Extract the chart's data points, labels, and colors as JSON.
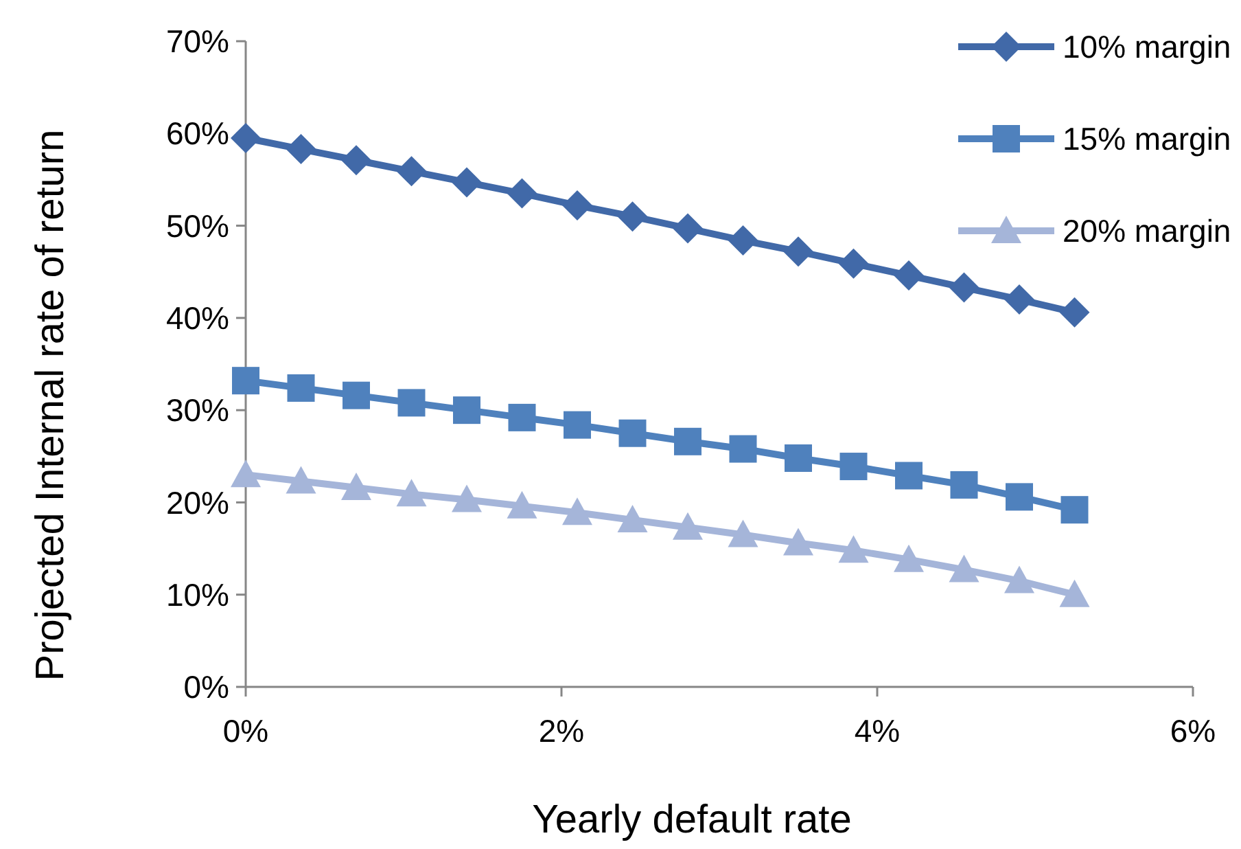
{
  "chart_data": {
    "type": "line",
    "xlabel": "Yearly default rate",
    "ylabel": "Projected Internal rate of return",
    "x": [
      0,
      0.35,
      0.7,
      1.05,
      1.4,
      1.75,
      2.1,
      2.45,
      2.8,
      3.15,
      3.5,
      3.85,
      4.2,
      4.55,
      4.9,
      5.25
    ],
    "series": [
      {
        "name": "10% margin",
        "color": "#4169a8",
        "marker": "diamond",
        "values": [
          59.5,
          58.3,
          57.1,
          55.9,
          54.7,
          53.5,
          52.2,
          51.0,
          49.7,
          48.4,
          47.2,
          45.9,
          44.6,
          43.3,
          42.0,
          40.6
        ]
      },
      {
        "name": "15% margin",
        "color": "#4f81bd",
        "marker": "square",
        "values": [
          33.2,
          32.4,
          31.6,
          30.8,
          30.0,
          29.2,
          28.4,
          27.5,
          26.6,
          25.8,
          24.8,
          23.9,
          22.9,
          21.9,
          20.6,
          19.2
        ]
      },
      {
        "name": "20% margin",
        "color": "#a5b5d9",
        "marker": "triangle",
        "values": [
          23.0,
          22.3,
          21.6,
          20.9,
          20.3,
          19.6,
          18.9,
          18.1,
          17.3,
          16.5,
          15.6,
          14.8,
          13.8,
          12.7,
          11.5,
          10.0
        ]
      }
    ],
    "xlim": [
      0,
      6
    ],
    "xticks": [
      {
        "value": 0,
        "label": "0%"
      },
      {
        "value": 2,
        "label": "2%"
      },
      {
        "value": 4,
        "label": "4%"
      },
      {
        "value": 6,
        "label": "6%"
      }
    ],
    "ylim": [
      0,
      70
    ],
    "yticks": [
      {
        "value": 0,
        "label": "0%"
      },
      {
        "value": 10,
        "label": "10%"
      },
      {
        "value": 20,
        "label": "20%"
      },
      {
        "value": 30,
        "label": "30%"
      },
      {
        "value": 40,
        "label": "40%"
      },
      {
        "value": 50,
        "label": "50%"
      },
      {
        "value": 60,
        "label": "60%"
      },
      {
        "value": 70,
        "label": "70%"
      }
    ],
    "grid": false,
    "legend": "top right",
    "line_style": "solid"
  }
}
